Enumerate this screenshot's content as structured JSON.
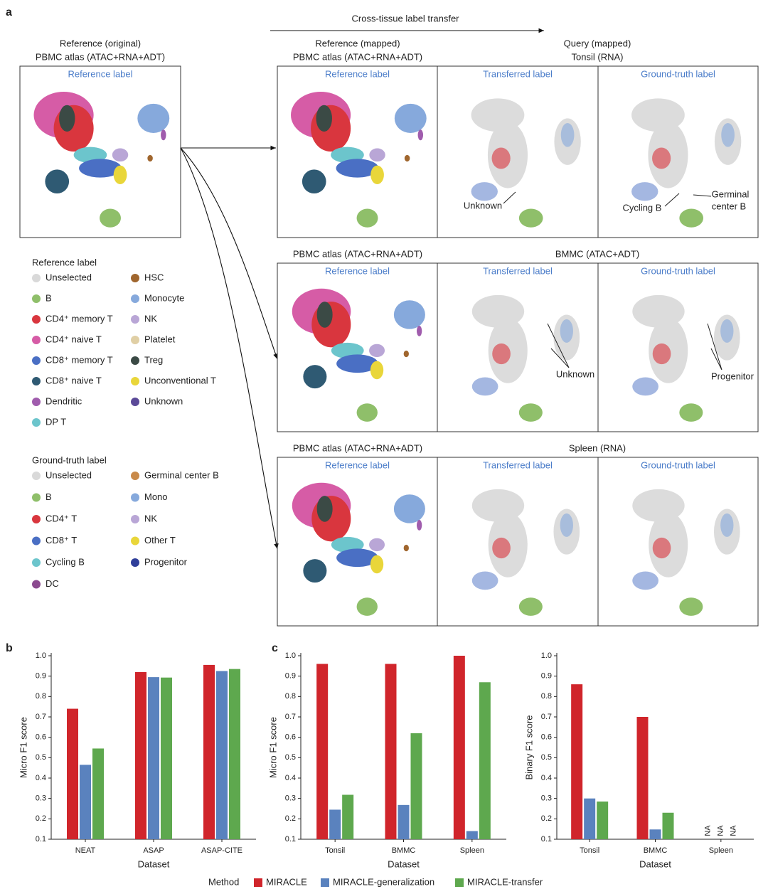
{
  "panel_labels": [
    "a",
    "b",
    "c"
  ],
  "panel_a": {
    "transfer_label": "Cross-tissue label transfer",
    "original": {
      "title_lines": [
        "Reference (original)",
        "PBMC atlas (ATAC+RNA+ADT)"
      ],
      "panel": "Reference label"
    },
    "rows": [
      {
        "left_title": [
          "Reference (mapped)",
          "PBMC atlas (ATAC+RNA+ADT)"
        ],
        "right_title": [
          "Query (mapped)",
          "Tonsil (RNA)"
        ],
        "panels": [
          "Reference label",
          "Transferred label",
          "Ground-truth label"
        ],
        "annotations": [
          [
            "Unknown"
          ],
          [
            "Cycling B"
          ],
          [
            "Germinal",
            "center B"
          ]
        ]
      },
      {
        "left_title": [
          "PBMC atlas (ATAC+RNA+ADT)"
        ],
        "right_title": [
          "BMMC (ATAC+ADT)"
        ],
        "panels": [
          "Reference label",
          "Transferred label",
          "Ground-truth label"
        ],
        "annotations": [
          [
            "Unknown"
          ],
          [
            "Progenitor"
          ]
        ]
      },
      {
        "left_title": [
          "PBMC atlas (ATAC+RNA+ADT)"
        ],
        "right_title": [
          "Spleen (RNA)"
        ],
        "panels": [
          "Reference label",
          "Transferred label",
          "Ground-truth label"
        ]
      }
    ],
    "legends": [
      {
        "title": "Reference label",
        "items": [
          {
            "label": "Unselected",
            "color": "#d9d9d9"
          },
          {
            "label": "B",
            "color": "#8fbf6a"
          },
          {
            "label": "CD4⁺ memory T",
            "color": "#d9363e"
          },
          {
            "label": "CD4⁺ naive T",
            "color": "#d65ca6"
          },
          {
            "label": "CD8⁺ memory T",
            "color": "#4a6fc4"
          },
          {
            "label": "CD8⁺ naive T",
            "color": "#2f5a73"
          },
          {
            "label": "Dendritic",
            "color": "#a05cad"
          },
          {
            "label": "DP T",
            "color": "#6cc5cc"
          },
          {
            "label": "HSC",
            "color": "#a0662e"
          },
          {
            "label": "Monocyte",
            "color": "#86a9dc"
          },
          {
            "label": "NK",
            "color": "#b9a6d6"
          },
          {
            "label": "Platelet",
            "color": "#e0cfa5"
          },
          {
            "label": "Treg",
            "color": "#3b4a45"
          },
          {
            "label": "Unconventional T",
            "color": "#e9d63a"
          },
          {
            "label": "Unknown",
            "color": "#5b4a98"
          }
        ]
      },
      {
        "title": "Ground-truth label",
        "items": [
          {
            "label": "Unselected",
            "color": "#d9d9d9"
          },
          {
            "label": "B",
            "color": "#8fbf6a"
          },
          {
            "label": "CD4⁺ T",
            "color": "#d9363e"
          },
          {
            "label": "CD8⁺ T",
            "color": "#4a6fc4"
          },
          {
            "label": "Cycling B",
            "color": "#6cc5cc"
          },
          {
            "label": "DC",
            "color": "#8b4a8f"
          },
          {
            "label": "Germinal center B",
            "color": "#c98a4a"
          },
          {
            "label": "Mono",
            "color": "#86a9dc"
          },
          {
            "label": "NK",
            "color": "#b9a6d6"
          },
          {
            "label": "Other T",
            "color": "#e9d63a"
          },
          {
            "label": "Progenitor",
            "color": "#2f3f9a"
          }
        ]
      }
    ]
  },
  "method_legend_title": "Method",
  "chart_data": [
    {
      "type": "bar",
      "x_label": "Dataset",
      "y_label": "Micro F1 score",
      "categories": [
        "NEAT",
        "ASAP",
        "ASAP-CITE"
      ],
      "series": [
        {
          "name": "MIRACLE",
          "color": "#d0252b",
          "values": [
            0.74,
            0.92,
            0.955
          ]
        },
        {
          "name": "MIRACLE-generalization",
          "color": "#5a82be",
          "values": [
            0.465,
            0.895,
            0.925
          ]
        },
        {
          "name": "MIRACLE-transfer",
          "color": "#5ea84e",
          "values": [
            0.545,
            0.893,
            0.935
          ]
        }
      ],
      "ylim": [
        0.1,
        1.0
      ],
      "yticks": [
        0.1,
        0.2,
        0.3,
        0.4,
        0.5,
        0.6,
        0.7,
        0.8,
        0.9,
        {
          "value": 1.0,
          "label": "1.0"
        }
      ]
    },
    {
      "type": "bar",
      "x_label": "Dataset",
      "y_label": "Micro F1 score",
      "categories": [
        "Tonsil",
        "BMMC",
        "Spleen"
      ],
      "series": [
        {
          "name": "MIRACLE",
          "color": "#d0252b",
          "values": [
            0.96,
            0.96,
            1.0
          ]
        },
        {
          "name": "MIRACLE-generalization",
          "color": "#5a82be",
          "values": [
            0.245,
            0.268,
            0.14
          ]
        },
        {
          "name": "MIRACLE-transfer",
          "color": "#5ea84e",
          "values": [
            0.318,
            0.62,
            0.87
          ]
        }
      ],
      "ylim": [
        0.1,
        1.0
      ],
      "yticks": [
        0.1,
        0.2,
        0.3,
        0.4,
        0.5,
        0.6,
        0.7,
        0.8,
        0.9,
        {
          "value": 1.0,
          "label": "1.0"
        }
      ]
    },
    {
      "type": "bar",
      "x_label": "Dataset",
      "y_label": "Binary F1 score",
      "categories": [
        "Tonsil",
        "BMMC",
        "Spleen"
      ],
      "series": [
        {
          "name": "MIRACLE",
          "color": "#d0252b",
          "values": [
            0.86,
            0.7,
            null
          ],
          "value_labels": [
            null,
            null,
            "NA"
          ]
        },
        {
          "name": "MIRACLE-generalization",
          "color": "#5a82be",
          "values": [
            0.3,
            0.148,
            null
          ],
          "value_labels": [
            null,
            null,
            "NA"
          ]
        },
        {
          "name": "MIRACLE-transfer",
          "color": "#5ea84e",
          "values": [
            0.285,
            0.23,
            null
          ],
          "value_labels": [
            null,
            null,
            "NA"
          ]
        }
      ],
      "ylim": [
        0.1,
        1.0
      ],
      "yticks": [
        0.1,
        0.2,
        0.3,
        0.4,
        0.5,
        0.6,
        0.7,
        0.8,
        0.9,
        {
          "value": 1.0,
          "label": "1.0"
        }
      ]
    }
  ]
}
